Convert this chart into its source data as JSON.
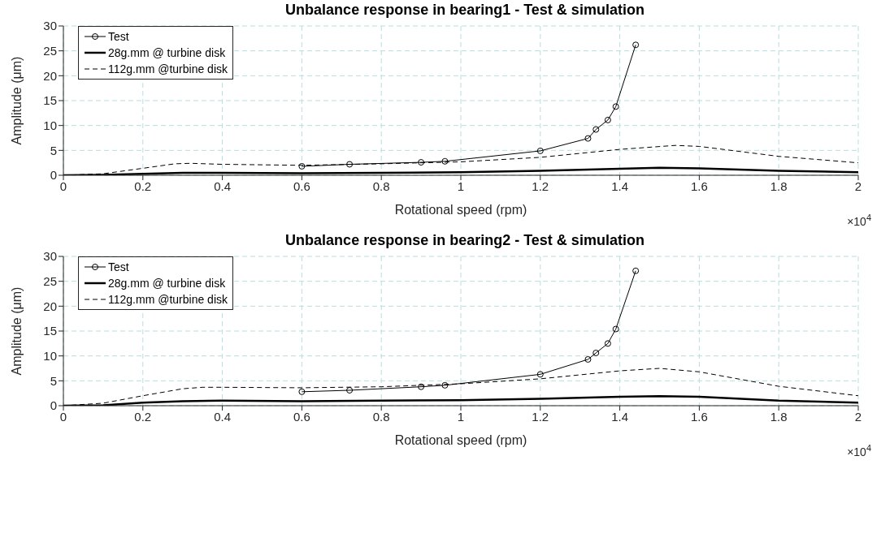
{
  "chart_data": [
    {
      "type": "line",
      "title": "Unbalance response in bearing1 - Test & simulation",
      "xlabel": "Rotational speed (rpm)",
      "ylabel": "Amplitude (μm)",
      "annotations": [
        "×10$^{4}$"
      ],
      "xlim": [
        0,
        2
      ],
      "xticks": [
        0,
        0.2,
        0.4,
        0.6,
        0.8,
        1,
        1.2,
        1.4,
        1.6,
        1.8,
        2
      ],
      "ylim": [
        0,
        30
      ],
      "yticks": [
        0,
        5,
        10,
        15,
        20,
        25,
        30
      ],
      "grid": true,
      "legend": "top left",
      "series": [
        {
          "name": "Test",
          "color": "#000000",
          "marker": "circle",
          "line_style": "solid",
          "x": [
            0.6,
            0.72,
            0.9,
            0.96,
            1.2,
            1.32,
            1.34,
            1.37,
            1.39,
            1.44
          ],
          "values": [
            1.8,
            2.2,
            2.6,
            2.8,
            4.9,
            7.4,
            9.2,
            11.1,
            13.8,
            26.2
          ]
        },
        {
          "name": "28g.mm @ turbine disk",
          "color": "#000000",
          "marker": "none",
          "line_style": "solid",
          "x": [
            0,
            0.1,
            0.2,
            0.3,
            0.4,
            0.6,
            0.8,
            1,
            1.2,
            1.4,
            1.5,
            1.6,
            1.8,
            2
          ],
          "values": [
            0,
            0.1,
            0.3,
            0.5,
            0.5,
            0.4,
            0.5,
            0.6,
            0.9,
            1.3,
            1.5,
            1.4,
            0.9,
            0.6
          ]
        },
        {
          "name": "112g.mm @turbine disk",
          "color": "#000000",
          "marker": "none",
          "line_style": "dashed",
          "x": [
            0,
            0.1,
            0.2,
            0.28,
            0.32,
            0.4,
            0.6,
            0.8,
            1,
            1.2,
            1.4,
            1.54,
            1.6,
            1.8,
            2
          ],
          "values": [
            0,
            0.3,
            1.4,
            2.3,
            2.4,
            2.2,
            2,
            2.3,
            2.7,
            3.6,
            5.2,
            6,
            5.8,
            3.8,
            2.5
          ]
        }
      ]
    },
    {
      "type": "line",
      "title": "Unbalance response in bearing2 - Test & simulation",
      "xlabel": "Rotational speed (rpm)",
      "ylabel": "Amplitude (μm)",
      "annotations": [
        "×10$^{4}$"
      ],
      "xlim": [
        0,
        2
      ],
      "xticks": [
        0,
        0.2,
        0.4,
        0.6,
        0.8,
        1,
        1.2,
        1.4,
        1.6,
        1.8,
        2
      ],
      "ylim": [
        0,
        30
      ],
      "yticks": [
        0,
        5,
        10,
        15,
        20,
        25,
        30
      ],
      "grid": true,
      "legend": "top left",
      "series": [
        {
          "name": "Test",
          "color": "#000000",
          "marker": "circle",
          "line_style": "solid",
          "x": [
            0.6,
            0.72,
            0.9,
            0.96,
            1.2,
            1.32,
            1.34,
            1.37,
            1.39,
            1.44
          ],
          "values": [
            2.8,
            3.1,
            3.8,
            4.1,
            6.3,
            9.3,
            10.6,
            12.5,
            15.4,
            27.1
          ]
        },
        {
          "name": "28g.mm @ turbine disk",
          "color": "#000000",
          "marker": "none",
          "line_style": "solid",
          "x": [
            0,
            0.1,
            0.2,
            0.3,
            0.4,
            0.6,
            0.8,
            1,
            1.2,
            1.4,
            1.5,
            1.6,
            1.8,
            2
          ],
          "values": [
            0,
            0.1,
            0.6,
            0.9,
            1,
            0.9,
            1,
            1.1,
            1.4,
            1.8,
            1.9,
            1.8,
            1,
            0.6
          ]
        },
        {
          "name": "112g.mm @turbine disk",
          "color": "#000000",
          "marker": "none",
          "line_style": "dashed",
          "x": [
            0,
            0.1,
            0.2,
            0.3,
            0.35,
            0.4,
            0.6,
            0.8,
            1,
            1.2,
            1.4,
            1.5,
            1.6,
            1.8,
            2
          ],
          "values": [
            0,
            0.5,
            2,
            3.4,
            3.7,
            3.7,
            3.6,
            3.8,
            4.4,
            5.4,
            7,
            7.5,
            6.8,
            3.9,
            2
          ]
        }
      ]
    }
  ]
}
